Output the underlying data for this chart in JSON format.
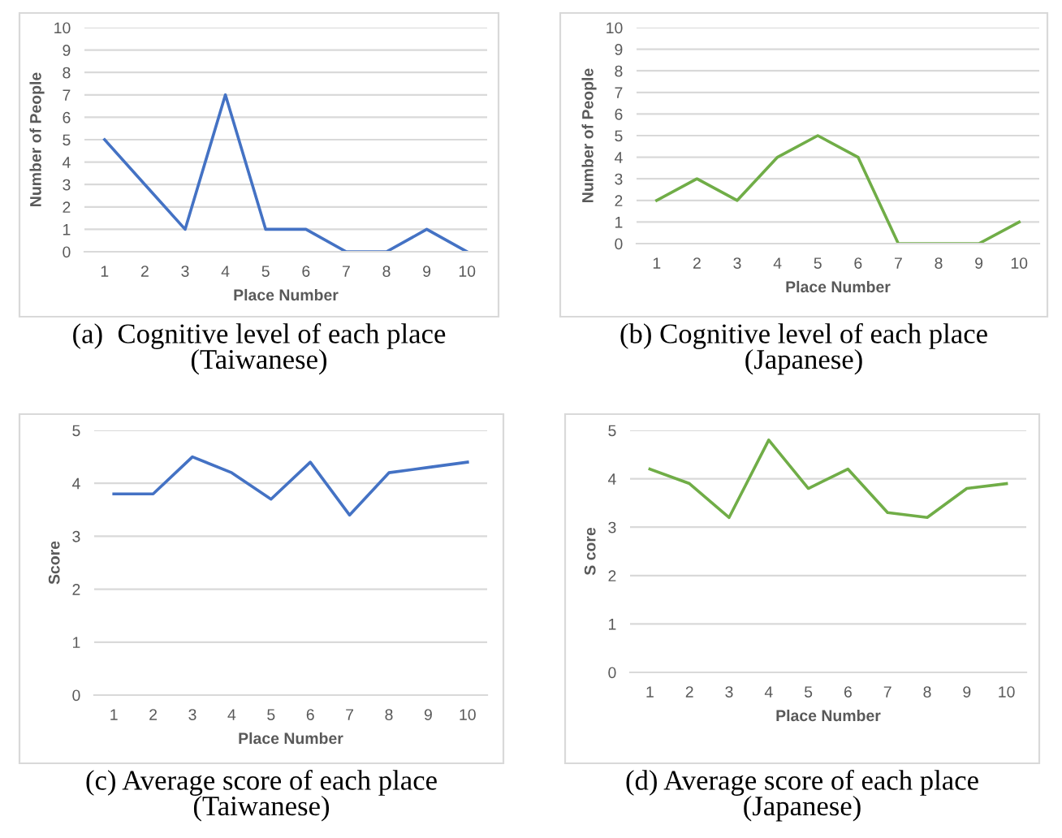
{
  "chart_data": [
    {
      "type": "line",
      "title": "(a)  Cognitive level of each place\n(Taiwanese)",
      "xlabel": "Place Number",
      "ylabel": "Number of People",
      "categories": [
        "1",
        "2",
        "3",
        "4",
        "5",
        "6",
        "7",
        "8",
        "9",
        "10"
      ],
      "series": [
        {
          "color": "#4472c4",
          "values": [
            5,
            3,
            1,
            7,
            1,
            1,
            0,
            0,
            1,
            0
          ]
        }
      ],
      "ylim": [
        0,
        10
      ],
      "yticks": [
        0,
        1,
        2,
        3,
        4,
        5,
        6,
        7,
        8,
        9,
        10
      ],
      "grid": "y"
    },
    {
      "type": "line",
      "title": "(b) Cognitive level of each place\n(Japanese)",
      "xlabel": "Place Number",
      "ylabel": "Number of People",
      "categories": [
        "1",
        "2",
        "3",
        "4",
        "5",
        "6",
        "7",
        "8",
        "9",
        "10"
      ],
      "series": [
        {
          "color": "#70ad47",
          "values": [
            2,
            3,
            2,
            4,
            5,
            4,
            0,
            0,
            0,
            1
          ]
        }
      ],
      "ylim": [
        0,
        10
      ],
      "yticks": [
        0,
        1,
        2,
        3,
        4,
        5,
        6,
        7,
        8,
        9,
        10
      ],
      "grid": "y"
    },
    {
      "type": "line",
      "title": "(c) Average score of each place\n(Taiwanese)",
      "xlabel": "Place Number",
      "ylabel": "Score",
      "categories": [
        "1",
        "2",
        "3",
        "4",
        "5",
        "6",
        "7",
        "8",
        "9",
        "10"
      ],
      "series": [
        {
          "color": "#4472c4",
          "values": [
            3.8,
            3.8,
            4.5,
            4.2,
            3.7,
            4.4,
            3.4,
            4.2,
            4.3,
            4.4
          ]
        }
      ],
      "ylim": [
        0,
        5
      ],
      "yticks": [
        0,
        1,
        2,
        3,
        4,
        5
      ],
      "grid": "y"
    },
    {
      "type": "line",
      "title": "(d) Average score of each place\n(Japanese)",
      "xlabel": "Place Number",
      "ylabel": "S core",
      "categories": [
        "1",
        "2",
        "3",
        "4",
        "5",
        "6",
        "7",
        "8",
        "9",
        "10"
      ],
      "series": [
        {
          "color": "#70ad47",
          "values": [
            4.2,
            3.9,
            3.2,
            4.8,
            3.8,
            4.2,
            3.3,
            3.2,
            3.8,
            3.9
          ]
        }
      ],
      "ylim": [
        0,
        5
      ],
      "yticks": [
        0,
        1,
        2,
        3,
        4,
        5
      ],
      "grid": "y"
    }
  ]
}
